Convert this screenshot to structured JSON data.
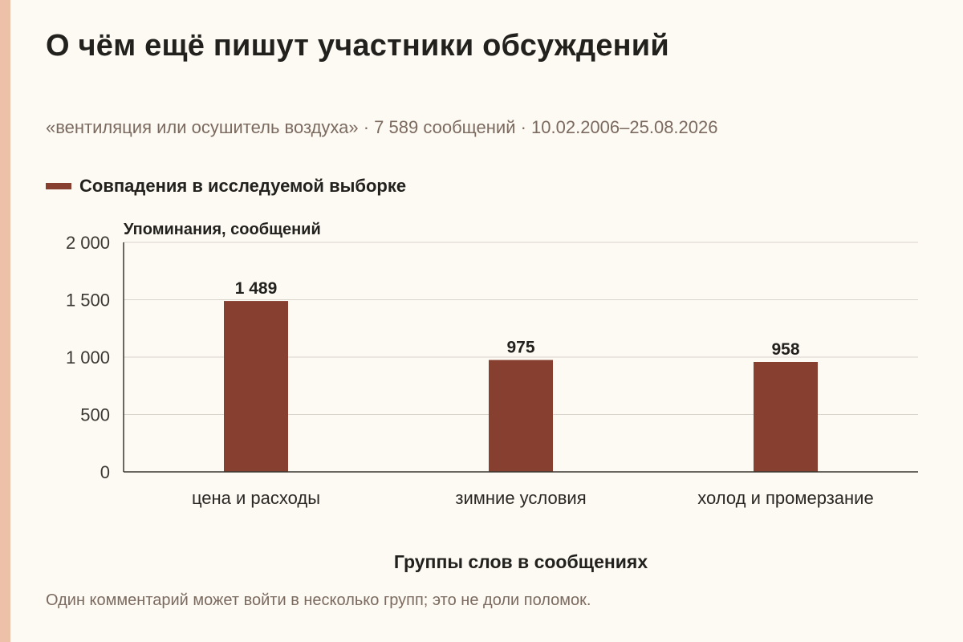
{
  "title": "О чём ещё пишут участники обсуждений",
  "subtitle": "«вентиляция или осушитель воздуха» · 7 589 сообщений · 10.02.2006–25.08.2026",
  "note": "Один комментарий может войти в несколько групп; это не доли поломок.",
  "colors": {
    "bar": "#873f30",
    "accent": "#ecc1a7",
    "grid": "#d9d4cc",
    "axis": "#3a3631"
  },
  "chart_data": {
    "type": "bar",
    "categories": [
      "цена и расходы",
      "зимние условия",
      "холод и промерзание"
    ],
    "series": [
      {
        "name": "Совпадения в исследуемой выборке",
        "values": [
          1489,
          975,
          958
        ],
        "labels": [
          "1 489",
          "975",
          "958"
        ]
      }
    ],
    "ylabel": "Упоминания, сообщений",
    "xlabel": "Группы слов в сообщениях",
    "ylim": [
      0,
      2000
    ],
    "yticks": [
      0,
      500,
      1000,
      1500,
      2000
    ],
    "ytick_labels": [
      "0",
      "500",
      "1 000",
      "1 500",
      "2 000"
    ],
    "grid": true,
    "legend_position": "top-left"
  }
}
